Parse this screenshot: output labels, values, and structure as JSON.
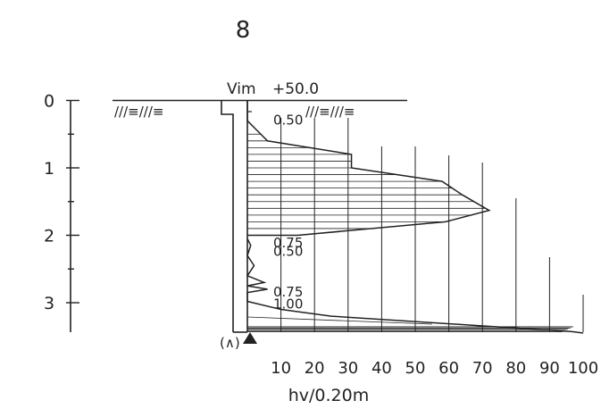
{
  "title": "8",
  "ground_label": "Vim",
  "ground_level": "+50.0",
  "x_axis_label": "hv/0.20m",
  "ground_hatch": [
    "///≡///≡",
    "///≡///≡"
  ],
  "tip_symbol": "(∧)",
  "annotations": [
    {
      "text": "0.50",
      "depth": 0.25
    },
    {
      "text": "0.75",
      "depth": 2.07
    },
    {
      "text": "0.50",
      "depth": 2.2
    },
    {
      "text": "0.75",
      "depth": 2.8
    },
    {
      "text": "1.00",
      "depth": 2.98
    }
  ],
  "chart_data": {
    "type": "area",
    "title": "8",
    "xlabel": "hv/0.20m",
    "ylabel": "",
    "x_ticks": [
      "10",
      "20",
      "30",
      "40",
      "50",
      "60",
      "70",
      "80",
      "90",
      "100"
    ],
    "y_ticks": [
      "0",
      "1",
      "2",
      "3"
    ],
    "xlim": [
      0,
      100
    ],
    "ylim": [
      0,
      3.4
    ],
    "grid": true,
    "upper_profile": [
      [
        0,
        0.0
      ],
      [
        0,
        0.3
      ],
      [
        3,
        0.45
      ],
      [
        6,
        0.6
      ],
      [
        31,
        0.8
      ],
      [
        31,
        1.0
      ],
      [
        58,
        1.2
      ],
      [
        64,
        1.4
      ],
      [
        72,
        1.63
      ],
      [
        59,
        1.8
      ],
      [
        15,
        2.0
      ],
      [
        0,
        2.0
      ]
    ],
    "lower_profile": [
      [
        0,
        2.05
      ],
      [
        1,
        2.15
      ],
      [
        0,
        2.3
      ],
      [
        2,
        2.45
      ],
      [
        0,
        2.6
      ],
      [
        5,
        2.7
      ],
      [
        0,
        2.75
      ],
      [
        6,
        2.8
      ],
      [
        0,
        2.85
      ],
      [
        0,
        2.98
      ],
      [
        10,
        3.1
      ],
      [
        25,
        3.2
      ],
      [
        97,
        3.43
      ],
      [
        100,
        3.45
      ]
    ]
  }
}
